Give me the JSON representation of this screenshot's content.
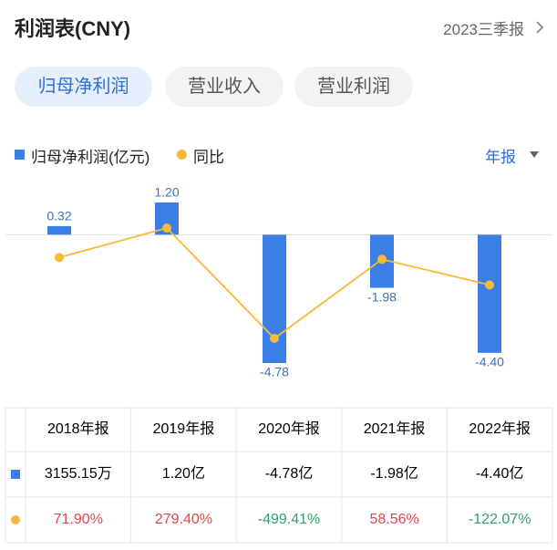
{
  "header": {
    "title": "利润表(CNY)",
    "period": "2023三季报"
  },
  "tabs": [
    "归母净利润",
    "营业收入",
    "营业利润"
  ],
  "period_selector": "年报",
  "chart_data": {
    "type": "bar",
    "categories": [
      "2018年报",
      "2019年报",
      "2020年报",
      "2021年报",
      "2022年报"
    ],
    "series": [
      {
        "name": "归母净利润(亿元)",
        "color": "#3b7fe6",
        "values": [
          0.32,
          1.2,
          -4.78,
          -1.98,
          -4.4
        ],
        "value_labels": [
          "0.32",
          "1.20",
          "-4.78",
          "-1.98",
          "-4.40"
        ]
      },
      {
        "name": "同比",
        "type": "line",
        "axis": "y2",
        "color": "#f6b93b",
        "values": [
          71.9,
          279.4,
          -499.41,
          58.56,
          -122.07
        ],
        "value_labels": [
          "71.90%",
          "279.40%",
          "-499.41%",
          "58.56%",
          "-122.07%"
        ]
      }
    ],
    "grid": false
  },
  "table": {
    "rows": [
      [
        "3155.15万",
        "1.20亿",
        "-4.78亿",
        "-1.98亿",
        "-4.40亿"
      ]
    ],
    "up_color": "#e0474c",
    "down_color": "#2ba26a"
  }
}
